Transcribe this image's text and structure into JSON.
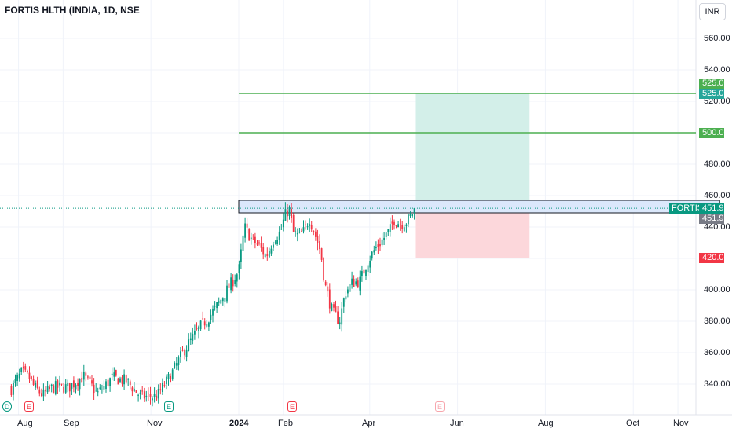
{
  "title": "FORTIS HLTH (INDIA, 1D, NSE",
  "currency": "INR",
  "ticker_label": "FORTIS",
  "y_ticks": [
    "560.00",
    "540.00",
    "520.00",
    "480.00",
    "460.00",
    "440.00",
    "400.00",
    "380.00",
    "360.00",
    "340.00"
  ],
  "x_ticks": [
    "Aug",
    "Sep",
    "Nov",
    "2024",
    "Feb",
    "Apr",
    "Jun",
    "Aug",
    "Oct",
    "Nov"
  ],
  "price_tags": {
    "target_green": "525.00",
    "target_teal": "525.00",
    "level_500": "500.00",
    "last_price": "451.95",
    "last_price_gray": "451.95",
    "stop": "420.00"
  },
  "events": [
    {
      "label": "D",
      "kind": "dividend"
    },
    {
      "label": "E",
      "kind": "earnings"
    },
    {
      "label": "E",
      "kind": "earnings"
    },
    {
      "label": "E",
      "kind": "earnings"
    },
    {
      "label": "E",
      "kind": "earnings-future"
    }
  ],
  "colors": {
    "up": "#089981",
    "down": "#f23645",
    "level_line": "#4caf50",
    "profit_zone": "#d3efe9",
    "loss_zone": "#fcd7db",
    "resistance_zone": "#dbe8fb"
  },
  "chart_data": {
    "type": "candlestick",
    "symbol": "FORTIS HLTH (INDIA)",
    "interval": "1D",
    "exchange": "NSE",
    "ylim": [
      325,
      572
    ],
    "path": [
      [
        "2023-07-27",
        337
      ],
      [
        "2023-08-03",
        347
      ],
      [
        "2023-08-08",
        345
      ],
      [
        "2023-08-12",
        338
      ],
      [
        "2023-08-18",
        333
      ],
      [
        "2023-08-25",
        338
      ],
      [
        "2023-09-05",
        338
      ],
      [
        "2023-09-15",
        345
      ],
      [
        "2023-09-25",
        334
      ],
      [
        "2023-10-05",
        344
      ],
      [
        "2023-10-15",
        342
      ],
      [
        "2023-10-25",
        332
      ],
      [
        "2023-11-05",
        332
      ],
      [
        "2023-11-15",
        346
      ],
      [
        "2023-11-25",
        363
      ],
      [
        "2023-12-05",
        376
      ],
      [
        "2023-12-15",
        387
      ],
      [
        "2023-12-22",
        397
      ],
      [
        "2024-01-01",
        412
      ],
      [
        "2024-01-05",
        440
      ],
      [
        "2024-01-10",
        432
      ],
      [
        "2024-01-15",
        428
      ],
      [
        "2024-01-20",
        421
      ],
      [
        "2024-01-25",
        432
      ],
      [
        "2024-01-30",
        437
      ],
      [
        "2024-02-02",
        447
      ],
      [
        "2024-02-05",
        452
      ],
      [
        "2024-02-08",
        436
      ],
      [
        "2024-02-12",
        434
      ],
      [
        "2024-02-16",
        438
      ],
      [
        "2024-02-19",
        446
      ],
      [
        "2024-02-22",
        438
      ],
      [
        "2024-02-27",
        424
      ],
      [
        "2024-03-01",
        403
      ],
      [
        "2024-03-06",
        386
      ],
      [
        "2024-03-11",
        380
      ],
      [
        "2024-03-15",
        398
      ],
      [
        "2024-03-20",
        405
      ],
      [
        "2024-03-25",
        405
      ],
      [
        "2024-03-30",
        417
      ],
      [
        "2024-04-04",
        425
      ],
      [
        "2024-04-10",
        432
      ],
      [
        "2024-04-15",
        438
      ],
      [
        "2024-04-18",
        445
      ],
      [
        "2024-04-22",
        442
      ],
      [
        "2024-04-26",
        443
      ],
      [
        "2024-04-29",
        446
      ],
      [
        "2024-05-02",
        451.95
      ]
    ],
    "last_price": 451.95,
    "resistance_zone": {
      "from": "2024-01-01",
      "to": "2024-11-30",
      "low": 449,
      "high": 457
    },
    "horizontal_levels": [
      {
        "price": 525.0,
        "from": "2024-01-01"
      },
      {
        "price": 500.0,
        "from": "2024-01-01"
      }
    ],
    "long_position": {
      "entry": 451.95,
      "target": 525.0,
      "stop": 420.0,
      "from": "2024-05-03",
      "to": "2024-07-21"
    },
    "event_markers": [
      {
        "date": "2023-07-17",
        "type": "D"
      },
      {
        "date": "2023-08-02",
        "type": "E"
      },
      {
        "date": "2023-11-10",
        "type": "E"
      },
      {
        "date": "2024-02-07",
        "type": "E"
      },
      {
        "date": "2024-05-22",
        "type": "E"
      }
    ]
  }
}
